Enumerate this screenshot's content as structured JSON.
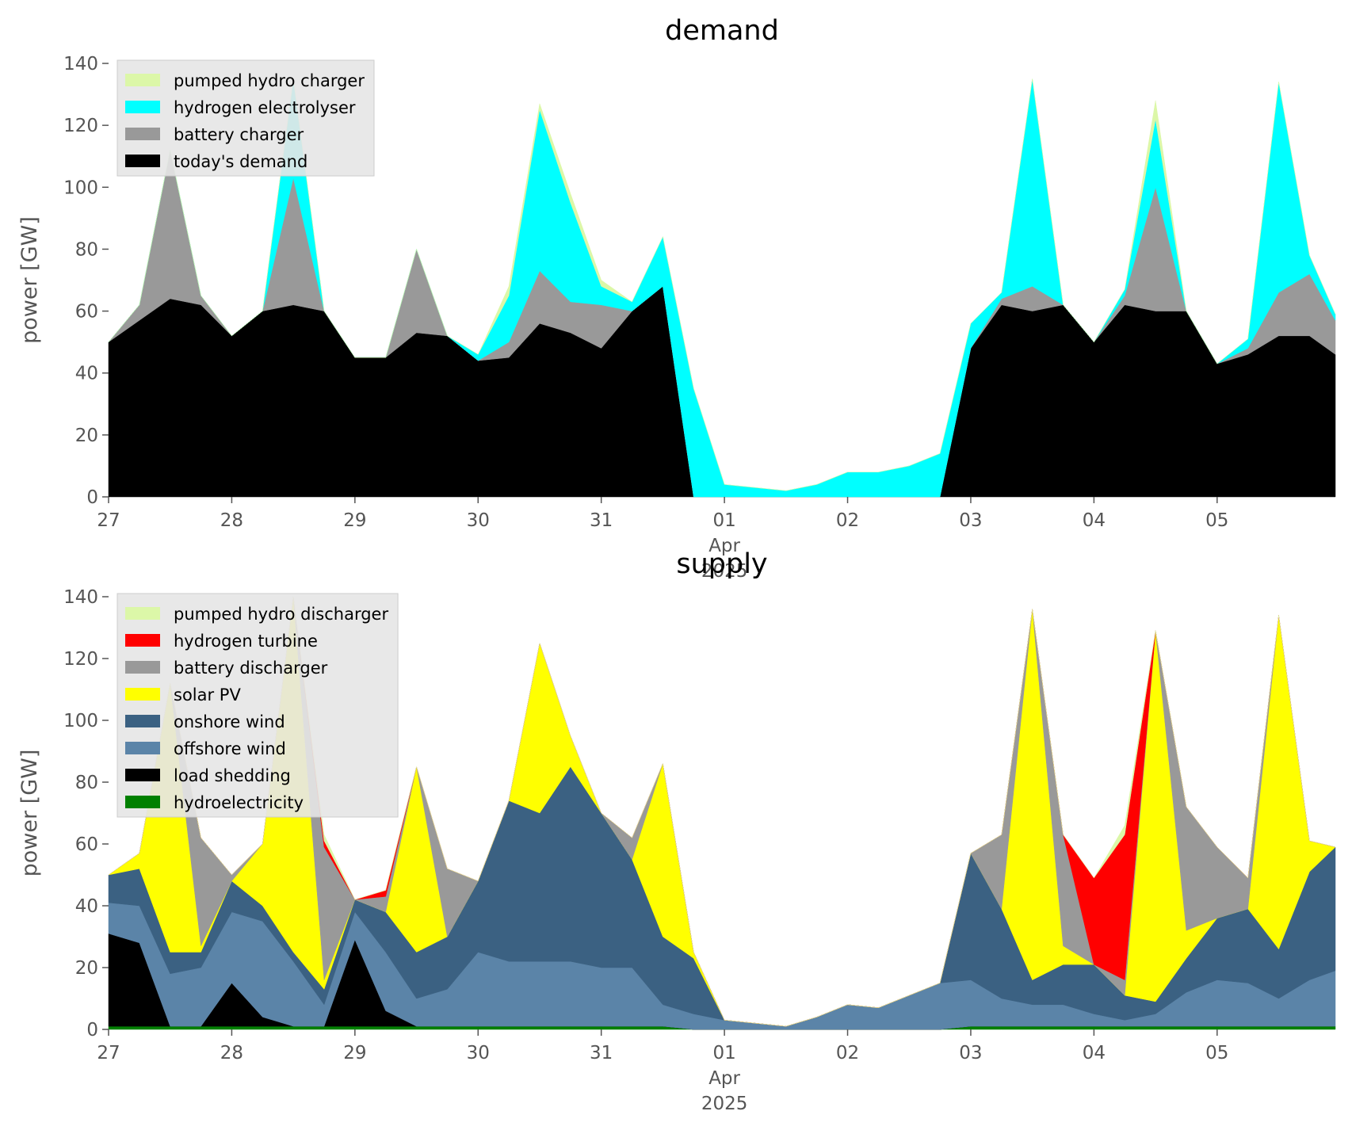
{
  "chart_data": [
    {
      "type": "area",
      "stacked": true,
      "title": "demand",
      "ylabel": "power [GW]",
      "x": [
        0,
        0.25,
        0.5,
        0.75,
        1,
        1.25,
        1.5,
        1.75,
        2,
        2.25,
        2.5,
        2.75,
        3,
        3.25,
        3.5,
        3.75,
        4,
        4.25,
        4.5,
        4.75,
        5,
        5.25,
        5.5,
        5.75,
        6,
        6.25,
        6.5,
        6.75,
        7,
        7.25,
        7.5,
        7.75,
        8,
        8.25,
        8.5,
        8.75,
        9,
        9.25,
        9.5,
        9.75,
        9.96
      ],
      "xlim": [
        0,
        9.96
      ],
      "xticks": [
        {
          "value": 0,
          "label": "27"
        },
        {
          "value": 1,
          "label": "28"
        },
        {
          "value": 2,
          "label": "29"
        },
        {
          "value": 3,
          "label": "30"
        },
        {
          "value": 4,
          "label": "31"
        },
        {
          "value": 5,
          "label": "01"
        },
        {
          "value": 6,
          "label": "02"
        },
        {
          "value": 7,
          "label": "03"
        },
        {
          "value": 8,
          "label": "04"
        },
        {
          "value": 9,
          "label": "05"
        }
      ],
      "x_month": "Apr",
      "x_year": "2025",
      "ylim": [
        0,
        140
      ],
      "yticks": [
        0,
        20,
        40,
        60,
        80,
        100,
        120,
        140
      ],
      "grid": false,
      "legend": "upper left",
      "series": [
        {
          "name": "today's demand",
          "color": "#000000",
          "values": [
            50,
            57,
            64,
            62,
            52,
            60,
            62,
            60,
            45,
            45,
            53,
            52,
            44,
            45,
            56,
            53,
            48,
            60,
            68,
            0,
            0,
            0,
            0,
            0,
            0,
            0,
            0,
            0,
            48,
            62,
            60,
            62,
            50,
            62,
            60,
            60,
            43,
            46,
            52,
            52,
            46
          ]
        },
        {
          "name": "battery charger",
          "color": "#999999",
          "values": [
            0,
            5,
            48,
            3,
            0,
            0,
            41,
            0,
            0,
            0,
            27,
            0,
            0,
            5,
            17,
            10,
            14,
            0,
            0,
            0,
            0,
            0,
            0,
            0,
            0,
            0,
            0,
            0,
            0,
            2,
            8,
            0,
            0,
            3,
            40,
            0,
            0,
            2,
            14,
            20,
            11
          ]
        },
        {
          "name": "hydrogen electrolyser",
          "color": "#00ffff",
          "values": [
            0,
            0,
            0,
            0,
            0,
            0,
            32,
            0,
            0,
            0,
            0,
            0,
            2,
            15,
            52,
            32,
            6,
            3,
            16,
            35,
            4,
            3,
            2,
            4,
            8,
            8,
            10,
            14,
            8,
            2,
            67,
            0,
            0,
            2,
            22,
            0,
            0,
            3,
            68,
            6,
            2
          ]
        },
        {
          "name": "pumped hydro charger",
          "color": "#dcf7a8",
          "values": [
            0,
            0,
            0,
            0,
            0,
            0,
            0,
            0,
            0,
            0,
            0,
            0,
            0,
            3,
            2,
            3,
            2,
            0,
            0,
            0,
            0,
            0,
            0,
            0,
            0,
            0,
            0,
            0,
            0,
            0,
            0,
            0,
            0,
            0,
            6,
            0,
            0,
            0,
            0,
            0,
            0
          ]
        }
      ]
    },
    {
      "type": "area",
      "stacked": true,
      "title": "supply",
      "ylabel": "power [GW]",
      "x": [
        0,
        0.25,
        0.5,
        0.75,
        1,
        1.25,
        1.5,
        1.75,
        2,
        2.25,
        2.5,
        2.75,
        3,
        3.25,
        3.5,
        3.75,
        4,
        4.25,
        4.5,
        4.75,
        5,
        5.25,
        5.5,
        5.75,
        6,
        6.25,
        6.5,
        6.75,
        7,
        7.25,
        7.5,
        7.75,
        8,
        8.25,
        8.5,
        8.75,
        9,
        9.25,
        9.5,
        9.75,
        9.96
      ],
      "xlim": [
        0,
        9.96
      ],
      "xticks": [
        {
          "value": 0,
          "label": "27"
        },
        {
          "value": 1,
          "label": "28"
        },
        {
          "value": 2,
          "label": "29"
        },
        {
          "value": 3,
          "label": "30"
        },
        {
          "value": 4,
          "label": "31"
        },
        {
          "value": 5,
          "label": "01"
        },
        {
          "value": 6,
          "label": "02"
        },
        {
          "value": 7,
          "label": "03"
        },
        {
          "value": 8,
          "label": "04"
        },
        {
          "value": 9,
          "label": "05"
        }
      ],
      "x_month": "Apr",
      "x_year": "2025",
      "ylim": [
        0,
        140
      ],
      "yticks": [
        0,
        20,
        40,
        60,
        80,
        100,
        120,
        140
      ],
      "grid": false,
      "legend": "upper left",
      "series": [
        {
          "name": "hydroelectricity",
          "color": "#008000",
          "values": [
            1,
            1,
            1,
            1,
            1,
            1,
            1,
            1,
            1,
            1,
            1,
            1,
            1,
            1,
            1,
            1,
            1,
            1,
            1,
            0,
            0,
            0,
            0,
            0,
            0,
            0,
            0,
            0,
            1,
            1,
            1,
            1,
            1,
            1,
            1,
            1,
            1,
            1,
            1,
            1,
            1
          ]
        },
        {
          "name": "load shedding",
          "color": "#000000",
          "values": [
            30,
            27,
            0,
            0,
            14,
            3,
            0,
            0,
            28,
            5,
            0,
            0,
            0,
            0,
            0,
            0,
            0,
            0,
            0,
            0,
            0,
            0,
            0,
            0,
            0,
            0,
            0,
            0,
            0,
            0,
            0,
            0,
            0,
            0,
            0,
            0,
            0,
            0,
            0,
            0,
            0
          ]
        },
        {
          "name": "offshore wind",
          "color": "#5b84a8",
          "values": [
            10,
            12,
            17,
            19,
            23,
            31,
            21,
            7,
            9,
            19,
            9,
            12,
            24,
            21,
            21,
            21,
            19,
            19,
            7,
            5,
            3,
            2,
            1,
            4,
            8,
            7,
            11,
            15,
            15,
            9,
            7,
            7,
            4,
            2,
            4,
            11,
            15,
            14,
            9,
            15,
            18
          ]
        },
        {
          "name": "onshore wind",
          "color": "#3b6182",
          "values": [
            9,
            12,
            7,
            5,
            10,
            5,
            3,
            5,
            4,
            13,
            15,
            17,
            23,
            52,
            48,
            63,
            50,
            35,
            22,
            18,
            0,
            0,
            0,
            0,
            0,
            0,
            0,
            0,
            41,
            29,
            8,
            13,
            16,
            8,
            4,
            11,
            20,
            24,
            16,
            35,
            40
          ]
        },
        {
          "name": "solar PV",
          "color": "#ffff00",
          "values": [
            0,
            5,
            87,
            2,
            0,
            20,
            115,
            3,
            0,
            0,
            60,
            0,
            0,
            0,
            55,
            10,
            0,
            0,
            56,
            2,
            0,
            0,
            0,
            0,
            0,
            0,
            0,
            0,
            0,
            0,
            120,
            6,
            0,
            0,
            120,
            9,
            0,
            0,
            108,
            10,
            0
          ]
        },
        {
          "name": "battery discharger",
          "color": "#999999",
          "values": [
            0,
            0,
            0,
            35,
            2,
            0,
            0,
            43,
            0,
            5,
            0,
            22,
            0,
            0,
            0,
            0,
            0,
            7,
            0,
            0,
            0,
            0,
            0,
            0,
            0,
            0,
            0,
            0,
            0,
            24,
            0,
            36,
            0,
            5,
            0,
            40,
            23,
            10,
            0,
            0,
            0
          ]
        },
        {
          "name": "hydrogen turbine",
          "color": "#ff0000",
          "values": [
            0,
            0,
            0,
            0,
            0,
            0,
            0,
            2,
            0,
            2,
            0,
            0,
            0,
            0,
            0,
            0,
            0,
            0,
            0,
            0,
            0,
            0,
            0,
            0,
            0,
            0,
            0,
            0,
            0,
            0,
            0,
            0,
            28,
            47,
            0,
            0,
            0,
            0,
            0,
            0,
            0
          ]
        },
        {
          "name": "pumped hydro discharger",
          "color": "#dcf7a8",
          "values": [
            0,
            0,
            0,
            0,
            0,
            0,
            0,
            2,
            0,
            0,
            0,
            0,
            0,
            0,
            0,
            0,
            0,
            0,
            0,
            0,
            0,
            0,
            0,
            0,
            0,
            0,
            0,
            0,
            0,
            0,
            0,
            0,
            0,
            3,
            0,
            0,
            0,
            0,
            0,
            0,
            0
          ]
        }
      ]
    }
  ]
}
